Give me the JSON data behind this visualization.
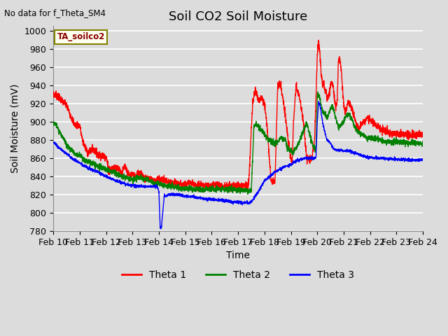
{
  "title": "Soil CO2 Soil Moisture",
  "ylabel": "Soil Moisture (mV)",
  "xlabel": "Time",
  "no_data_text": "No data for f_Theta_SM4",
  "legend_label": "TA_soilco2",
  "ylim": [
    780,
    1005
  ],
  "yticks": [
    780,
    800,
    820,
    840,
    860,
    880,
    900,
    920,
    940,
    960,
    980,
    1000
  ],
  "xtick_labels": [
    "Feb 10",
    "Feb 11",
    "Feb 12",
    "Feb 13",
    "Feb 14",
    "Feb 15",
    "Feb 16",
    "Feb 17",
    "Feb 18",
    "Feb 19",
    "Feb 20",
    "Feb 21",
    "Feb 22",
    "Feb 23",
    "Feb 24"
  ],
  "line_colors": [
    "red",
    "green",
    "blue"
  ],
  "legend_entries": [
    "Theta 1",
    "Theta 2",
    "Theta 3"
  ],
  "background_color": "#dcdcdc",
  "grid_color": "white",
  "title_fontsize": 13,
  "axis_label_fontsize": 10,
  "tick_fontsize": 9
}
